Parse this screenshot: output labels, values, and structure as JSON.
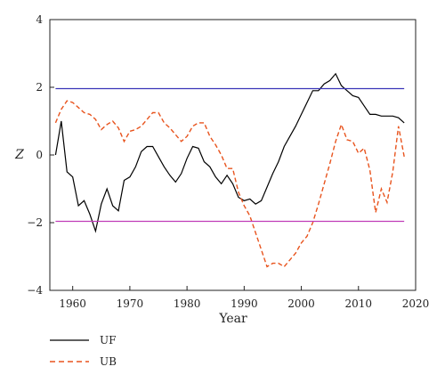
{
  "chart_data": {
    "type": "line",
    "xlabel": "Year",
    "ylabel": "Z",
    "xlim": [
      1956,
      2020
    ],
    "ylim": [
      -4,
      4
    ],
    "x_ticks": [
      1960,
      1970,
      1980,
      1990,
      2000,
      2010,
      2020
    ],
    "y_ticks": [
      -4,
      -2,
      0,
      2,
      4
    ],
    "grid": false,
    "legend_position": "bottom-left",
    "series": [
      {
        "name": "UF",
        "color": "#000000",
        "dash": "solid",
        "x": [
          1957,
          1958,
          1959,
          1960,
          1961,
          1962,
          1963,
          1964,
          1965,
          1966,
          1967,
          1968,
          1969,
          1970,
          1971,
          1972,
          1973,
          1974,
          1975,
          1976,
          1977,
          1978,
          1979,
          1980,
          1981,
          1982,
          1983,
          1984,
          1985,
          1986,
          1987,
          1988,
          1989,
          1990,
          1991,
          1992,
          1993,
          1994,
          1995,
          1996,
          1997,
          1998,
          1999,
          2000,
          2001,
          2002,
          2003,
          2004,
          2005,
          2006,
          2007,
          2008,
          2009,
          2010,
          2011,
          2012,
          2013,
          2014,
          2015,
          2016,
          2017,
          2018
        ],
        "values": [
          0.0,
          1.0,
          -0.5,
          -0.65,
          -1.5,
          -1.35,
          -1.75,
          -2.25,
          -1.45,
          -1.0,
          -1.5,
          -1.65,
          -0.75,
          -0.65,
          -0.35,
          0.1,
          0.25,
          0.25,
          -0.05,
          -0.35,
          -0.6,
          -0.8,
          -0.55,
          -0.1,
          0.25,
          0.2,
          -0.2,
          -0.35,
          -0.65,
          -0.85,
          -0.6,
          -0.85,
          -1.25,
          -1.35,
          -1.3,
          -1.45,
          -1.35,
          -0.95,
          -0.55,
          -0.2,
          0.25,
          0.55,
          0.85,
          1.2,
          1.55,
          1.9,
          1.9,
          2.1,
          2.2,
          2.4,
          2.05,
          1.9,
          1.75,
          1.7,
          1.45,
          1.2,
          1.2,
          1.15,
          1.15,
          1.15,
          1.1,
          0.95
        ]
      },
      {
        "name": "UB",
        "color": "#e8541e",
        "dash": "dashed",
        "x": [
          1957,
          1958,
          1959,
          1960,
          1961,
          1962,
          1963,
          1964,
          1965,
          1966,
          1967,
          1968,
          1969,
          1970,
          1971,
          1972,
          1973,
          1974,
          1975,
          1976,
          1977,
          1978,
          1979,
          1980,
          1981,
          1982,
          1983,
          1984,
          1985,
          1986,
          1987,
          1988,
          1989,
          1990,
          1991,
          1992,
          1993,
          1994,
          1995,
          1996,
          1997,
          1998,
          1999,
          2000,
          2001,
          2002,
          2003,
          2004,
          2005,
          2006,
          2007,
          2008,
          2009,
          2010,
          2011,
          2012,
          2013,
          2014,
          2015,
          2016,
          2017,
          2018
        ],
        "values": [
          0.95,
          1.35,
          1.6,
          1.55,
          1.4,
          1.25,
          1.2,
          1.05,
          0.75,
          0.9,
          1.0,
          0.8,
          0.4,
          0.7,
          0.75,
          0.85,
          1.05,
          1.25,
          1.25,
          0.95,
          0.8,
          0.6,
          0.4,
          0.55,
          0.85,
          0.95,
          0.95,
          0.55,
          0.3,
          0.0,
          -0.4,
          -0.4,
          -1.1,
          -1.5,
          -1.8,
          -2.3,
          -2.8,
          -3.3,
          -3.2,
          -3.2,
          -3.3,
          -3.1,
          -2.9,
          -2.6,
          -2.4,
          -2.0,
          -1.45,
          -0.85,
          -0.25,
          0.4,
          0.9,
          0.45,
          0.4,
          0.05,
          0.2,
          -0.45,
          -1.7,
          -1.0,
          -1.4,
          -0.5,
          0.85,
          -0.05
        ]
      },
      {
        "name": "",
        "color": "#3a35b8",
        "dash": "solid",
        "x": [
          1957,
          2018
        ],
        "values": [
          1.96,
          1.96
        ]
      },
      {
        "name": "",
        "color": "#c03cb8",
        "dash": "solid",
        "x": [
          1957,
          2018
        ],
        "values": [
          -1.96,
          -1.96
        ]
      }
    ]
  },
  "legend": {
    "items": [
      {
        "label": "UF",
        "color": "#000000",
        "dash": "solid"
      },
      {
        "label": "UB",
        "color": "#e8541e",
        "dash": "dashed"
      }
    ]
  }
}
